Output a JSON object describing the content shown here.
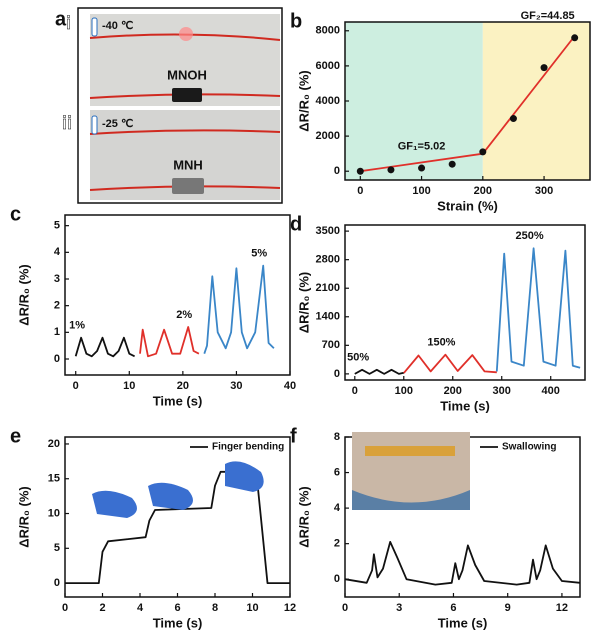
{
  "panel_a": {
    "panel": "a",
    "photos": [
      {
        "label": "i",
        "temperature": "-40 ℃",
        "sample": "MNOH"
      },
      {
        "label": "ii",
        "temperature": "-25 ℃",
        "sample": "MNH"
      }
    ]
  },
  "chart_data": [
    {
      "panel": "b",
      "type": "scatter",
      "xlabel": "Strain (%)",
      "ylabel": "ΔR/R₀ (%)",
      "x": [
        0,
        50,
        100,
        150,
        200,
        250,
        300,
        350
      ],
      "values": [
        0,
        80,
        180,
        400,
        1100,
        3000,
        5900,
        7600
      ],
      "color": "#111111",
      "xlim": [
        -25,
        375
      ],
      "ylim": [
        -500,
        8500
      ],
      "xticks": [
        0,
        100,
        200,
        300
      ],
      "yticks": [
        0,
        2000,
        4000,
        6000,
        8000
      ],
      "regions": [
        {
          "from": -25,
          "to": 200,
          "color": "#cdeee0"
        },
        {
          "from": 200,
          "to": 375,
          "color": "#fbf2c2"
        }
      ],
      "fit_lines": [
        {
          "x": [
            0,
            200
          ],
          "y": [
            0,
            1000
          ],
          "color": "#e0302a"
        },
        {
          "x": [
            200,
            350
          ],
          "y": [
            1000,
            7700
          ],
          "color": "#e0302a"
        }
      ],
      "annotations": [
        "GF₁=5.02",
        "GF₂=44.85"
      ]
    },
    {
      "panel": "c",
      "type": "line",
      "xlabel": "Time (s)",
      "ylabel": "ΔR/R₀ (%)",
      "xlim": [
        -2,
        40
      ],
      "ylim": [
        -0.6,
        5.4
      ],
      "xticks": [
        0,
        10,
        20,
        30,
        40
      ],
      "yticks": [
        0,
        1,
        2,
        3,
        4,
        5
      ],
      "series": [
        {
          "name": "1%",
          "color": "#111111",
          "x": [
            0,
            1,
            2,
            3,
            4,
            5,
            6,
            7,
            8,
            9,
            10,
            11
          ],
          "values": [
            0.1,
            0.8,
            0.2,
            0.1,
            0.3,
            0.8,
            0.2,
            0.1,
            0.3,
            0.8,
            0.2,
            0.1
          ]
        },
        {
          "name": "2%",
          "color": "#e0302a",
          "x": [
            12,
            12.5,
            13.5,
            15,
            16.5,
            18,
            19.5,
            21,
            22,
            23
          ],
          "values": [
            0.2,
            1.1,
            0.1,
            0.2,
            1.1,
            0.2,
            0.2,
            1.2,
            0.3,
            0.2
          ]
        },
        {
          "name": "5%",
          "color": "#3a86c8",
          "x": [
            24,
            24.5,
            25.5,
            26.5,
            28,
            29,
            30,
            31,
            32,
            33.5,
            35,
            36,
            37
          ],
          "values": [
            0.2,
            0.5,
            3.1,
            1.0,
            0.4,
            1.0,
            3.4,
            1.0,
            0.4,
            1.0,
            3.5,
            0.6,
            0.4
          ]
        }
      ]
    },
    {
      "panel": "d",
      "type": "line",
      "xlabel": "Time (s)",
      "ylabel": "ΔR/R₀ (%)",
      "xlim": [
        -20,
        470
      ],
      "ylim": [
        -150,
        3650
      ],
      "xticks": [
        0,
        100,
        200,
        300,
        400
      ],
      "yticks": [
        0,
        700,
        1400,
        2100,
        2800,
        3500
      ],
      "series": [
        {
          "name": "50%",
          "color": "#111111",
          "x": [
            0,
            15,
            30,
            45,
            60,
            75,
            90,
            100
          ],
          "values": [
            0,
            100,
            0,
            100,
            0,
            100,
            0,
            30
          ]
        },
        {
          "name": "150%",
          "color": "#e0302a",
          "x": [
            100,
            130,
            155,
            185,
            210,
            240,
            265,
            290
          ],
          "values": [
            20,
            450,
            60,
            470,
            70,
            460,
            60,
            40
          ]
        },
        {
          "name": "250%",
          "color": "#3a86c8",
          "x": [
            290,
            305,
            320,
            345,
            365,
            385,
            410,
            430,
            445,
            460
          ],
          "values": [
            60,
            2950,
            300,
            200,
            3080,
            300,
            200,
            3020,
            200,
            150
          ]
        }
      ]
    },
    {
      "panel": "e",
      "type": "line",
      "xlabel": "Time (s)",
      "ylabel": "ΔR/R₀ (%)",
      "legend": "upper right",
      "xlim": [
        0,
        12
      ],
      "ylim": [
        -2,
        21
      ],
      "xticks": [
        0,
        2,
        4,
        6,
        8,
        10,
        12
      ],
      "yticks": [
        0,
        5,
        10,
        15,
        20
      ],
      "series": [
        {
          "name": "Finger bending",
          "color": "#111111",
          "x": [
            0,
            1.8,
            2.0,
            2.3,
            4.3,
            4.5,
            4.8,
            7.8,
            8.0,
            8.3,
            10.2,
            10.5,
            10.8,
            12
          ],
          "values": [
            0,
            0,
            4.5,
            6,
            6.6,
            9,
            10.5,
            10.8,
            14,
            16,
            16,
            8,
            0,
            0
          ]
        }
      ]
    },
    {
      "panel": "f",
      "type": "line",
      "xlabel": "Time (s)",
      "ylabel": "ΔR/R₀ (%)",
      "legend": "upper right",
      "xlim": [
        0,
        13
      ],
      "ylim": [
        -1,
        8
      ],
      "xticks": [
        0,
        3,
        6,
        9,
        12
      ],
      "yticks": [
        0,
        2,
        4,
        6,
        8
      ],
      "series": [
        {
          "name": "Swallowing",
          "color": "#111111",
          "x": [
            0,
            1.2,
            1.5,
            1.6,
            1.8,
            2.1,
            2.5,
            2.9,
            3.4,
            5.0,
            5.9,
            6.1,
            6.3,
            6.5,
            6.8,
            7.2,
            7.7,
            9.5,
            10.2,
            10.4,
            10.6,
            10.8,
            11.1,
            11.5,
            12.0,
            13
          ],
          "values": [
            0,
            -0.2,
            0.5,
            1.4,
            0.1,
            0.6,
            2.1,
            1.2,
            0.0,
            -0.3,
            -0.2,
            0.9,
            0.0,
            0.5,
            1.9,
            0.8,
            -0.1,
            -0.3,
            -0.2,
            1.1,
            0.0,
            0.5,
            1.9,
            0.6,
            -0.1,
            -0.2
          ]
        }
      ]
    }
  ]
}
